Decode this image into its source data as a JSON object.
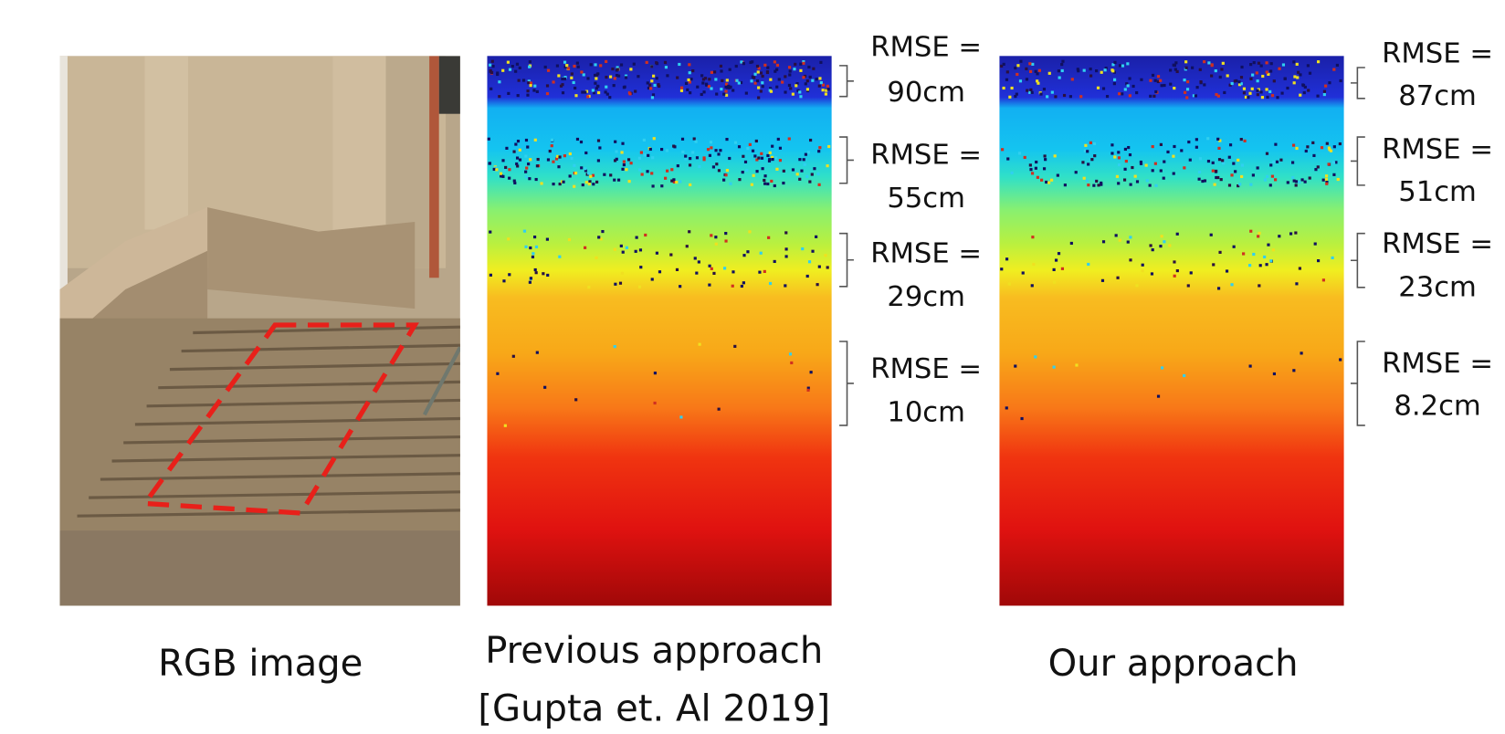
{
  "panels": [
    {
      "caption": [
        "RGB image"
      ]
    },
    {
      "caption": [
        "Previous approach",
        "[Gupta et. Al 2019]"
      ],
      "annotations": [
        [
          "RMSE =",
          "90cm"
        ],
        [
          "RMSE =",
          "55cm"
        ],
        [
          "RMSE =",
          "29cm"
        ],
        [
          "RMSE =",
          "10cm"
        ]
      ]
    },
    {
      "caption": [
        "Our approach"
      ],
      "annotations": [
        [
          "RMSE =",
          "87cm"
        ],
        [
          "RMSE =",
          "51cm"
        ],
        [
          "RMSE =",
          "23cm"
        ],
        [
          "RMSE =",
          "8.2cm"
        ]
      ]
    }
  ]
}
